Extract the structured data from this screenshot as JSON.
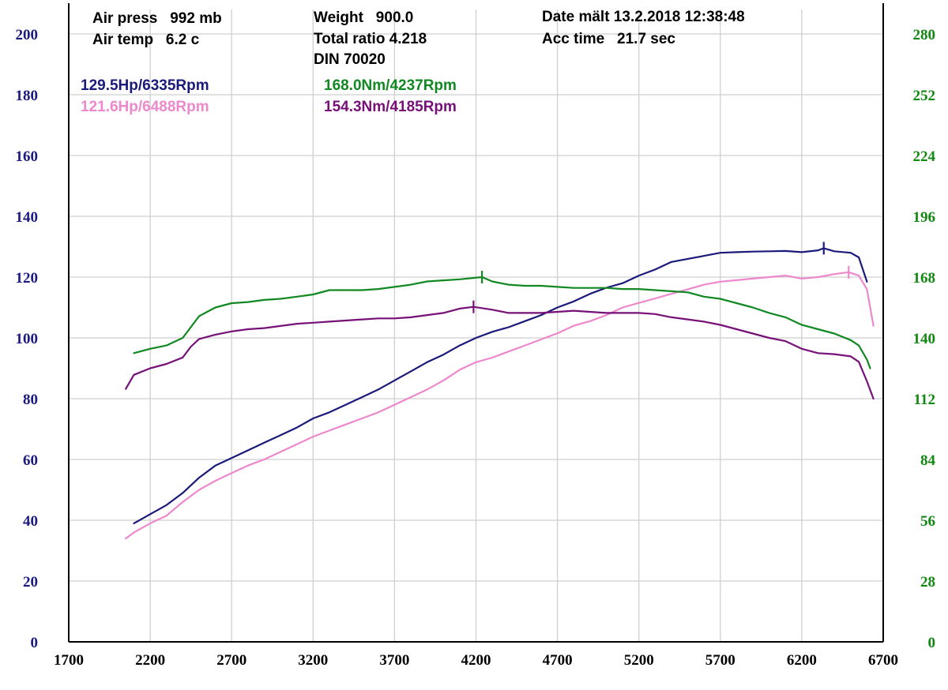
{
  "header": {
    "air_press": "Air press   992 mb",
    "air_temp": "Air temp   6.2 c",
    "weight": "Weight   900.0",
    "total_ratio": "Total ratio 4.218",
    "din": "DIN 70020",
    "date": "Date mält 13.2.2018 12:38:48",
    "acc_time": "Acc time   21.7 sec"
  },
  "chart_data": {
    "type": "line",
    "xlim": [
      1700,
      6700
    ],
    "x_ticks": [
      1700,
      2200,
      2700,
      3200,
      3700,
      4200,
      4700,
      5200,
      5700,
      6200,
      6700
    ],
    "y_left": {
      "lim": [
        0,
        200
      ],
      "ticks": [
        0,
        20,
        40,
        60,
        80,
        100,
        120,
        140,
        160,
        180,
        200
      ]
    },
    "y_right": {
      "lim": [
        0,
        280
      ],
      "ticks": [
        0,
        28,
        56,
        84,
        112,
        140,
        168,
        196,
        224,
        252,
        280
      ]
    },
    "grid": true,
    "colors": {
      "power1": "#1a1a7a",
      "power2": "#ee88cc",
      "torque1": "#118822",
      "torque2": "#771177",
      "left_axis": "#1a1a80",
      "right_axis": "#118811",
      "grid": "#cfcfcf"
    },
    "peaks": [
      {
        "series": "power1",
        "text": "129.5Hp/6335Rpm",
        "x": 6335,
        "y": 129.5,
        "axis": "left"
      },
      {
        "series": "power2",
        "text": "121.6Hp/6488Rpm",
        "x": 6488,
        "y": 121.6,
        "axis": "left"
      },
      {
        "series": "torque1",
        "text": "168.0Nm/4237Rpm",
        "x": 4237,
        "y": 168.0,
        "axis": "right"
      },
      {
        "series": "torque2",
        "text": "154.3Nm/4185Rpm",
        "x": 4185,
        "y": 154.3,
        "axis": "right"
      }
    ],
    "series": [
      {
        "key": "power1",
        "axis": "left",
        "points": [
          [
            2100,
            39
          ],
          [
            2200,
            42
          ],
          [
            2300,
            45
          ],
          [
            2400,
            49
          ],
          [
            2500,
            54
          ],
          [
            2600,
            58
          ],
          [
            2700,
            60.5
          ],
          [
            2800,
            63
          ],
          [
            2900,
            65.5
          ],
          [
            3000,
            68
          ],
          [
            3100,
            70.5
          ],
          [
            3200,
            73.5
          ],
          [
            3300,
            75.5
          ],
          [
            3400,
            78
          ],
          [
            3500,
            80.5
          ],
          [
            3600,
            83
          ],
          [
            3700,
            86
          ],
          [
            3800,
            89
          ],
          [
            3900,
            92
          ],
          [
            4000,
            94.5
          ],
          [
            4100,
            97.5
          ],
          [
            4200,
            100
          ],
          [
            4300,
            102
          ],
          [
            4400,
            103.5
          ],
          [
            4500,
            105.5
          ],
          [
            4600,
            107.5
          ],
          [
            4700,
            110
          ],
          [
            4800,
            112
          ],
          [
            4900,
            114.5
          ],
          [
            5000,
            116.5
          ],
          [
            5100,
            118
          ],
          [
            5200,
            120.5
          ],
          [
            5300,
            122.5
          ],
          [
            5400,
            125
          ],
          [
            5500,
            126
          ],
          [
            5600,
            127
          ],
          [
            5700,
            128
          ],
          [
            5800,
            128.2
          ],
          [
            5900,
            128.4
          ],
          [
            6000,
            128.5
          ],
          [
            6100,
            128.6
          ],
          [
            6200,
            128.2
          ],
          [
            6300,
            128.8
          ],
          [
            6335,
            129.5
          ],
          [
            6400,
            128.5
          ],
          [
            6500,
            128
          ],
          [
            6550,
            126.5
          ],
          [
            6600,
            118.5
          ]
        ]
      },
      {
        "key": "power2",
        "axis": "left",
        "points": [
          [
            2050,
            34
          ],
          [
            2100,
            36
          ],
          [
            2200,
            39
          ],
          [
            2300,
            41.5
          ],
          [
            2400,
            46
          ],
          [
            2500,
            50
          ],
          [
            2600,
            53
          ],
          [
            2700,
            55.5
          ],
          [
            2800,
            58
          ],
          [
            2900,
            60
          ],
          [
            3000,
            62.5
          ],
          [
            3100,
            65
          ],
          [
            3200,
            67.5
          ],
          [
            3300,
            69.5
          ],
          [
            3400,
            71.5
          ],
          [
            3500,
            73.5
          ],
          [
            3600,
            75.5
          ],
          [
            3700,
            78
          ],
          [
            3800,
            80.5
          ],
          [
            3900,
            83
          ],
          [
            4000,
            86
          ],
          [
            4100,
            89.5
          ],
          [
            4200,
            92
          ],
          [
            4300,
            93.5
          ],
          [
            4400,
            95.5
          ],
          [
            4500,
            97.5
          ],
          [
            4600,
            99.5
          ],
          [
            4700,
            101.5
          ],
          [
            4800,
            104
          ],
          [
            4900,
            105.5
          ],
          [
            5000,
            107.5
          ],
          [
            5100,
            110
          ],
          [
            5200,
            111.5
          ],
          [
            5300,
            113
          ],
          [
            5400,
            114.5
          ],
          [
            5500,
            116
          ],
          [
            5600,
            117.5
          ],
          [
            5700,
            118.5
          ],
          [
            5800,
            119
          ],
          [
            5900,
            119.5
          ],
          [
            6000,
            120
          ],
          [
            6100,
            120.5
          ],
          [
            6200,
            119.5
          ],
          [
            6300,
            120
          ],
          [
            6400,
            121
          ],
          [
            6488,
            121.6
          ],
          [
            6550,
            120.5
          ],
          [
            6600,
            116
          ],
          [
            6640,
            104
          ]
        ]
      },
      {
        "key": "torque1",
        "axis": "right",
        "points": [
          [
            2100,
            133
          ],
          [
            2200,
            135
          ],
          [
            2300,
            136.5
          ],
          [
            2400,
            140
          ],
          [
            2450,
            145
          ],
          [
            2500,
            150
          ],
          [
            2600,
            154
          ],
          [
            2700,
            156
          ],
          [
            2800,
            156.5
          ],
          [
            2900,
            157.5
          ],
          [
            3000,
            158
          ],
          [
            3100,
            159
          ],
          [
            3200,
            160
          ],
          [
            3300,
            162
          ],
          [
            3400,
            162
          ],
          [
            3500,
            162
          ],
          [
            3600,
            162.5
          ],
          [
            3700,
            163.5
          ],
          [
            3800,
            164.5
          ],
          [
            3900,
            166
          ],
          [
            4000,
            166.5
          ],
          [
            4100,
            167
          ],
          [
            4237,
            168
          ],
          [
            4300,
            166
          ],
          [
            4400,
            164.5
          ],
          [
            4500,
            164
          ],
          [
            4600,
            164
          ],
          [
            4700,
            163.5
          ],
          [
            4800,
            163
          ],
          [
            4900,
            163
          ],
          [
            5000,
            163
          ],
          [
            5100,
            162.5
          ],
          [
            5200,
            162.5
          ],
          [
            5300,
            162
          ],
          [
            5400,
            161.5
          ],
          [
            5500,
            161
          ],
          [
            5600,
            159
          ],
          [
            5700,
            158
          ],
          [
            5800,
            156
          ],
          [
            5900,
            154
          ],
          [
            6000,
            151.5
          ],
          [
            6100,
            149.5
          ],
          [
            6200,
            146
          ],
          [
            6300,
            144
          ],
          [
            6400,
            142
          ],
          [
            6500,
            139
          ],
          [
            6550,
            136.5
          ],
          [
            6600,
            130
          ],
          [
            6620,
            126
          ]
        ]
      },
      {
        "key": "torque2",
        "axis": "right",
        "points": [
          [
            2050,
            116.5
          ],
          [
            2100,
            123
          ],
          [
            2200,
            126
          ],
          [
            2300,
            128
          ],
          [
            2400,
            131
          ],
          [
            2450,
            136
          ],
          [
            2500,
            139.5
          ],
          [
            2600,
            141.5
          ],
          [
            2700,
            143
          ],
          [
            2800,
            144
          ],
          [
            2900,
            144.5
          ],
          [
            3000,
            145.5
          ],
          [
            3100,
            146.5
          ],
          [
            3200,
            147
          ],
          [
            3300,
            147.5
          ],
          [
            3400,
            148
          ],
          [
            3500,
            148.5
          ],
          [
            3600,
            149
          ],
          [
            3700,
            149
          ],
          [
            3800,
            149.5
          ],
          [
            3900,
            150.5
          ],
          [
            4000,
            151.5
          ],
          [
            4100,
            153.5
          ],
          [
            4185,
            154.3
          ],
          [
            4300,
            153
          ],
          [
            4400,
            151.5
          ],
          [
            4500,
            151.5
          ],
          [
            4600,
            151.5
          ],
          [
            4700,
            152
          ],
          [
            4800,
            152.5
          ],
          [
            4900,
            152
          ],
          [
            5000,
            151.5
          ],
          [
            5100,
            151.5
          ],
          [
            5200,
            151.5
          ],
          [
            5300,
            151
          ],
          [
            5400,
            149.5
          ],
          [
            5500,
            148.5
          ],
          [
            5600,
            147.5
          ],
          [
            5700,
            146
          ],
          [
            5800,
            144
          ],
          [
            5900,
            142
          ],
          [
            6000,
            140
          ],
          [
            6100,
            138.5
          ],
          [
            6200,
            135
          ],
          [
            6300,
            133
          ],
          [
            6400,
            132.5
          ],
          [
            6500,
            131.5
          ],
          [
            6550,
            129
          ],
          [
            6600,
            120
          ],
          [
            6640,
            112
          ]
        ]
      }
    ]
  }
}
